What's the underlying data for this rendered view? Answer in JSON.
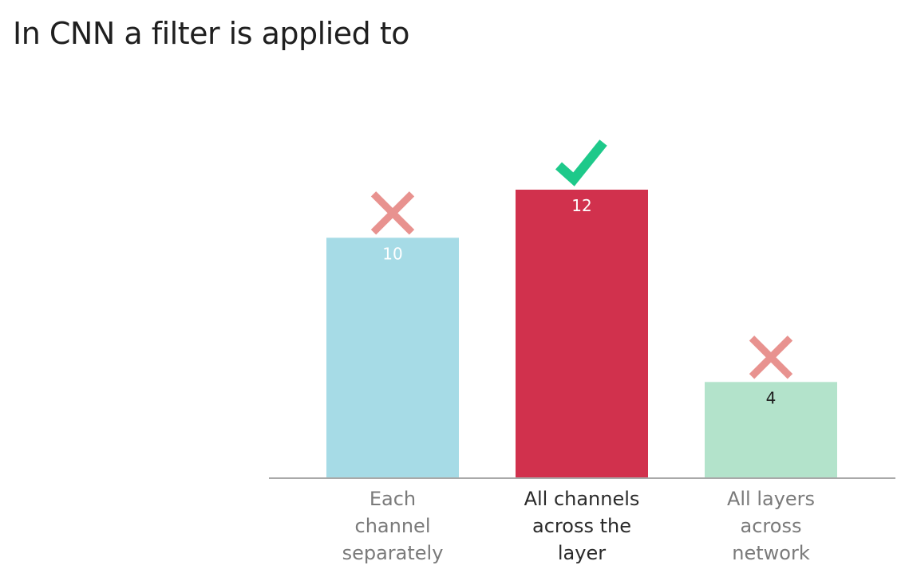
{
  "question": {
    "title": "In CNN a filter is applied to"
  },
  "chart_data": {
    "type": "bar",
    "title": "",
    "xlabel": "",
    "ylabel": "",
    "ylim": [
      0,
      12
    ],
    "grid": false,
    "legend": "none",
    "categories": [
      [
        "Each",
        "channel",
        "separately"
      ],
      [
        "All channels",
        "across the",
        "layer"
      ],
      [
        "All layers",
        "across",
        "network"
      ]
    ],
    "values": [
      10,
      12,
      4
    ],
    "correct": [
      false,
      true,
      false
    ],
    "colors": [
      "#a6dbe6",
      "#d1314d",
      "#b3e3cb"
    ],
    "value_label_colors": [
      "#ffffff",
      "#ffffff",
      "#1f1f1f"
    ],
    "category_label_colors": [
      "#7a7a7a",
      "#2a2a2a",
      "#7a7a7a"
    ],
    "mark_icons": [
      "cross-icon",
      "check-icon",
      "cross-icon"
    ],
    "mark_colors": {
      "cross": "#e8928f",
      "check": "#1ec98a"
    },
    "axis_color": "#a9a9a9"
  }
}
